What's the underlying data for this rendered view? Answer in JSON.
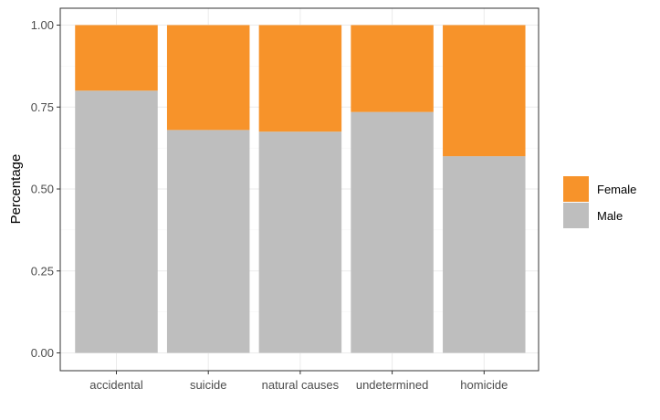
{
  "chart_data": {
    "type": "bar",
    "stacked": true,
    "title": "",
    "xlabel": "",
    "ylabel": "Percentage",
    "ylim": [
      0,
      1
    ],
    "yticks": [
      "0.00",
      "0.25",
      "0.50",
      "0.75",
      "1.00"
    ],
    "grid": true,
    "legend_position": "right",
    "categories": [
      "accidental",
      "suicide",
      "natural causes",
      "undetermined",
      "homicide"
    ],
    "series": [
      {
        "name": "Male",
        "color": "#bebebe",
        "values": [
          0.8,
          0.68,
          0.675,
          0.735,
          0.6
        ]
      },
      {
        "name": "Female",
        "color": "#f7932a",
        "values": [
          0.2,
          0.32,
          0.325,
          0.265,
          0.4
        ]
      }
    ],
    "legend": [
      "Female",
      "Male"
    ]
  }
}
